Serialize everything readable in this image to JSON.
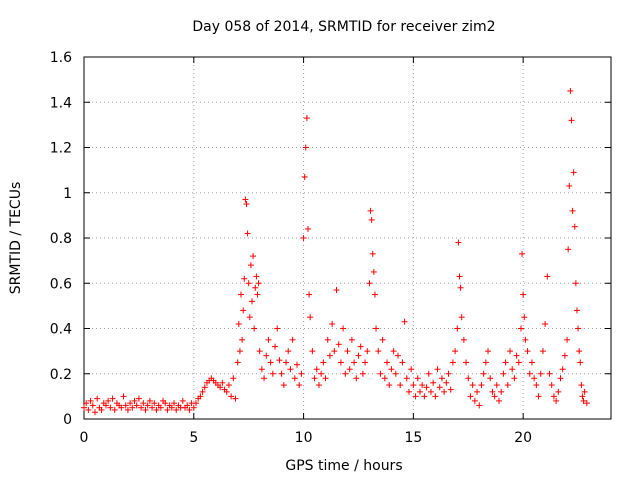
{
  "chart_data": {
    "type": "scatter",
    "title": "Day 058 of 2014, SRMTID for receiver zim2",
    "xlabel": "GPS time / hours",
    "ylabel": "SRMTID / TECUs",
    "xlim": [
      0,
      24
    ],
    "ylim": [
      0,
      1.6
    ],
    "x_ticks": [
      0,
      5,
      10,
      15,
      20
    ],
    "x_tick_labels": [
      "0",
      "5",
      "10",
      "15",
      "20"
    ],
    "y_ticks": [
      0,
      0.2,
      0.4,
      0.6,
      0.8,
      1,
      1.2,
      1.4,
      1.6
    ],
    "y_tick_labels": [
      "0",
      "0.2",
      "0.4",
      "0.6",
      "0.8",
      "1",
      "1.2",
      "1.4",
      "1.6"
    ],
    "grid": true,
    "marker": "+",
    "series": [
      {
        "name": "SRMTID",
        "color": "#ff0000",
        "x": [
          0.0,
          0.1,
          0.2,
          0.3,
          0.4,
          0.5,
          0.6,
          0.7,
          0.8,
          0.9,
          1.0,
          1.1,
          1.2,
          1.3,
          1.4,
          1.5,
          1.6,
          1.7,
          1.8,
          1.9,
          2.0,
          2.1,
          2.2,
          2.3,
          2.4,
          2.5,
          2.6,
          2.7,
          2.8,
          2.9,
          3.0,
          3.1,
          3.2,
          3.3,
          3.4,
          3.5,
          3.6,
          3.7,
          3.8,
          3.9,
          4.0,
          4.1,
          4.2,
          4.3,
          4.4,
          4.5,
          4.6,
          4.7,
          4.8,
          4.9,
          5.0,
          5.1,
          5.2,
          5.3,
          5.4,
          5.5,
          5.6,
          5.7,
          5.8,
          5.9,
          6.0,
          6.1,
          6.2,
          6.3,
          6.4,
          6.5,
          6.6,
          6.7,
          6.8,
          6.9,
          7.0,
          7.05,
          7.1,
          7.15,
          7.2,
          7.25,
          7.3,
          7.35,
          7.4,
          7.45,
          7.5,
          7.55,
          7.6,
          7.65,
          7.7,
          7.75,
          7.8,
          7.85,
          7.9,
          7.95,
          8.0,
          8.1,
          8.2,
          8.3,
          8.4,
          8.5,
          8.6,
          8.7,
          8.8,
          8.9,
          9.0,
          9.1,
          9.2,
          9.3,
          9.4,
          9.5,
          9.6,
          9.7,
          9.8,
          9.9,
          10.0,
          10.05,
          10.1,
          10.15,
          10.2,
          10.25,
          10.3,
          10.4,
          10.5,
          10.6,
          10.7,
          10.8,
          10.9,
          11.0,
          11.1,
          11.2,
          11.3,
          11.4,
          11.5,
          11.6,
          11.7,
          11.8,
          11.9,
          12.0,
          12.1,
          12.2,
          12.3,
          12.4,
          12.5,
          12.6,
          12.7,
          12.8,
          12.9,
          13.0,
          13.05,
          13.1,
          13.15,
          13.2,
          13.25,
          13.3,
          13.4,
          13.5,
          13.6,
          13.7,
          13.8,
          13.9,
          14.0,
          14.1,
          14.2,
          14.3,
          14.4,
          14.5,
          14.6,
          14.7,
          14.8,
          14.9,
          15.0,
          15.1,
          15.2,
          15.3,
          15.4,
          15.5,
          15.6,
          15.7,
          15.8,
          15.9,
          16.0,
          16.1,
          16.2,
          16.3,
          16.4,
          16.5,
          16.6,
          16.7,
          16.8,
          16.9,
          17.0,
          17.05,
          17.1,
          17.15,
          17.2,
          17.3,
          17.4,
          17.5,
          17.6,
          17.7,
          17.8,
          17.9,
          18.0,
          18.1,
          18.2,
          18.3,
          18.4,
          18.5,
          18.6,
          18.7,
          18.8,
          18.9,
          19.0,
          19.1,
          19.2,
          19.3,
          19.4,
          19.5,
          19.6,
          19.7,
          19.8,
          19.9,
          19.95,
          20.0,
          20.05,
          20.1,
          20.2,
          20.3,
          20.4,
          20.5,
          20.6,
          20.7,
          20.8,
          20.9,
          21.0,
          21.1,
          21.2,
          21.3,
          21.4,
          21.5,
          21.6,
          21.7,
          21.8,
          21.9,
          22.0,
          22.05,
          22.1,
          22.15,
          22.2,
          22.25,
          22.3,
          22.35,
          22.4,
          22.45,
          22.5,
          22.55,
          22.6,
          22.65,
          22.7,
          22.75,
          22.8,
          22.9
        ],
        "y": [
          0.05,
          0.07,
          0.04,
          0.08,
          0.06,
          0.03,
          0.09,
          0.05,
          0.04,
          0.07,
          0.06,
          0.08,
          0.05,
          0.09,
          0.04,
          0.07,
          0.06,
          0.05,
          0.1,
          0.06,
          0.04,
          0.07,
          0.05,
          0.08,
          0.06,
          0.09,
          0.05,
          0.07,
          0.04,
          0.06,
          0.08,
          0.05,
          0.07,
          0.04,
          0.06,
          0.05,
          0.08,
          0.07,
          0.04,
          0.06,
          0.05,
          0.07,
          0.04,
          0.06,
          0.05,
          0.08,
          0.05,
          0.06,
          0.04,
          0.07,
          0.05,
          0.07,
          0.09,
          0.1,
          0.12,
          0.14,
          0.16,
          0.17,
          0.18,
          0.17,
          0.16,
          0.15,
          0.14,
          0.16,
          0.13,
          0.12,
          0.15,
          0.1,
          0.18,
          0.09,
          0.25,
          0.42,
          0.3,
          0.55,
          0.35,
          0.48,
          0.62,
          0.97,
          0.95,
          0.82,
          0.6,
          0.45,
          0.68,
          0.52,
          0.72,
          0.4,
          0.58,
          0.63,
          0.55,
          0.6,
          0.3,
          0.22,
          0.18,
          0.28,
          0.35,
          0.25,
          0.2,
          0.32,
          0.4,
          0.26,
          0.2,
          0.15,
          0.25,
          0.3,
          0.22,
          0.35,
          0.18,
          0.24,
          0.15,
          0.2,
          0.8,
          1.07,
          1.2,
          1.33,
          0.84,
          0.55,
          0.45,
          0.3,
          0.18,
          0.22,
          0.15,
          0.2,
          0.25,
          0.18,
          0.35,
          0.28,
          0.42,
          0.3,
          0.57,
          0.33,
          0.25,
          0.4,
          0.2,
          0.3,
          0.22,
          0.35,
          0.25,
          0.18,
          0.28,
          0.32,
          0.2,
          0.25,
          0.3,
          0.6,
          0.92,
          0.88,
          0.73,
          0.65,
          0.55,
          0.4,
          0.3,
          0.2,
          0.35,
          0.18,
          0.25,
          0.15,
          0.22,
          0.3,
          0.2,
          0.28,
          0.15,
          0.25,
          0.43,
          0.18,
          0.12,
          0.22,
          0.15,
          0.1,
          0.18,
          0.12,
          0.15,
          0.1,
          0.14,
          0.2,
          0.12,
          0.16,
          0.1,
          0.22,
          0.14,
          0.18,
          0.12,
          0.16,
          0.2,
          0.13,
          0.25,
          0.3,
          0.4,
          0.78,
          0.63,
          0.58,
          0.45,
          0.35,
          0.25,
          0.18,
          0.1,
          0.15,
          0.08,
          0.12,
          0.06,
          0.15,
          0.2,
          0.25,
          0.3,
          0.18,
          0.12,
          0.1,
          0.15,
          0.08,
          0.12,
          0.2,
          0.25,
          0.15,
          0.3,
          0.22,
          0.18,
          0.28,
          0.25,
          0.4,
          0.73,
          0.55,
          0.45,
          0.35,
          0.3,
          0.2,
          0.25,
          0.18,
          0.15,
          0.1,
          0.2,
          0.3,
          0.42,
          0.63,
          0.2,
          0.15,
          0.1,
          0.08,
          0.12,
          0.18,
          0.22,
          0.28,
          0.35,
          0.75,
          1.03,
          1.45,
          1.32,
          0.92,
          1.09,
          0.85,
          0.6,
          0.48,
          0.4,
          0.3,
          0.25,
          0.15,
          0.1,
          0.08,
          0.12,
          0.07
        ]
      }
    ]
  }
}
